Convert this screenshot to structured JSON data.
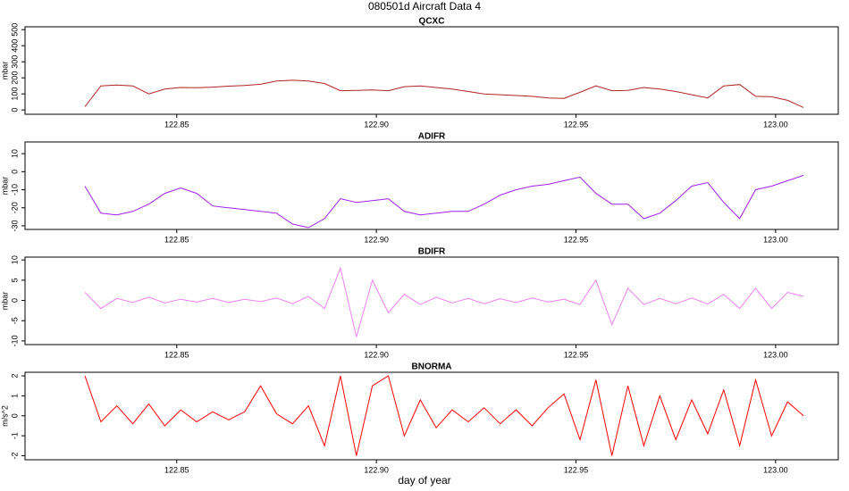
{
  "title": "080501d   Aircraft Data 4",
  "xlabel": "day of year",
  "chart_data": [
    {
      "type": "line",
      "title": "QCXC",
      "ylabel": "mbar",
      "color": "#b22222",
      "x": [
        122.827,
        122.831,
        122.835,
        122.839,
        122.843,
        122.847,
        122.851,
        122.855,
        122.859,
        122.863,
        122.867,
        122.871,
        122.875,
        122.879,
        122.883,
        122.887,
        122.891,
        122.895,
        122.899,
        122.903,
        122.907,
        122.911,
        122.915,
        122.919,
        122.923,
        122.927,
        122.931,
        122.935,
        122.939,
        122.943,
        122.947,
        122.951,
        122.955,
        122.959,
        122.963,
        122.967,
        122.971,
        122.975,
        122.979,
        122.983,
        122.987,
        122.991,
        122.995,
        122.999,
        123.003,
        123.007
      ],
      "values": [
        20,
        150,
        155,
        150,
        100,
        130,
        140,
        138,
        142,
        148,
        152,
        160,
        180,
        185,
        180,
        165,
        120,
        122,
        125,
        120,
        145,
        150,
        140,
        130,
        115,
        100,
        95,
        90,
        85,
        75,
        72,
        110,
        150,
        120,
        122,
        140,
        130,
        115,
        95,
        75,
        150,
        158,
        85,
        82,
        60,
        15
      ],
      "xlim": [
        122.812,
        123.0157
      ],
      "xticks": [
        122.85,
        {
          "value": 122.9,
          "label": "122.90"
        },
        122.95,
        {
          "value": 123,
          "label": "123.00"
        }
      ],
      "ylim": [
        -27,
        518
      ],
      "yticks": [
        0,
        100,
        200,
        300,
        400,
        500
      ]
    },
    {
      "type": "line",
      "title": "ADIFR",
      "ylabel": "mbar",
      "color": "#a020f0",
      "x": [
        122.827,
        122.831,
        122.835,
        122.839,
        122.843,
        122.847,
        122.851,
        122.855,
        122.859,
        122.863,
        122.867,
        122.871,
        122.875,
        122.879,
        122.883,
        122.887,
        122.891,
        122.895,
        122.899,
        122.903,
        122.907,
        122.911,
        122.915,
        122.919,
        122.923,
        122.927,
        122.931,
        122.935,
        122.939,
        122.943,
        122.947,
        122.951,
        122.955,
        122.959,
        122.963,
        122.967,
        122.971,
        122.975,
        122.979,
        122.983,
        122.987,
        122.991,
        122.995,
        122.999,
        123.003,
        123.007
      ],
      "values": [
        -8,
        -23,
        -24,
        -22,
        -18,
        -12,
        -9,
        -12,
        -19,
        -20,
        -21,
        -22,
        -23,
        -29,
        -31,
        -26,
        -15,
        -17,
        -16,
        -15,
        -22,
        -24,
        -23,
        -22,
        -22,
        -18,
        -13,
        -10,
        -8,
        -7,
        -5,
        -3,
        -12,
        -18,
        -18,
        -26,
        -23,
        -16,
        -8,
        -6,
        -17,
        -26,
        -10,
        -8,
        -5,
        -2
      ],
      "xlim": [
        122.812,
        123.0157
      ],
      "xticks": [
        122.85,
        {
          "value": 122.9,
          "label": "122.90"
        },
        122.95,
        {
          "value": 123,
          "label": "123.00"
        }
      ],
      "ylim": [
        -32,
        16.5
      ],
      "yticks": [
        -30,
        -20,
        -10,
        0,
        10
      ]
    },
    {
      "type": "line",
      "title": "BDIFR",
      "ylabel": "mbar",
      "color": "#ee82ee",
      "x": [
        122.827,
        122.831,
        122.835,
        122.839,
        122.843,
        122.847,
        122.851,
        122.855,
        122.859,
        122.863,
        122.867,
        122.871,
        122.875,
        122.879,
        122.883,
        122.887,
        122.891,
        122.895,
        122.899,
        122.903,
        122.907,
        122.911,
        122.915,
        122.919,
        122.923,
        122.927,
        122.931,
        122.935,
        122.939,
        122.943,
        122.947,
        122.951,
        122.955,
        122.959,
        122.963,
        122.967,
        122.971,
        122.975,
        122.979,
        122.983,
        122.987,
        122.991,
        122.995,
        122.999,
        123.003,
        123.007
      ],
      "values": [
        2,
        -2,
        0.5,
        -0.5,
        0.8,
        -0.6,
        0.3,
        -0.4,
        0.5,
        -0.5,
        0.3,
        -0.3,
        0.6,
        -0.8,
        1,
        -2,
        8,
        -9,
        5,
        -3,
        1.5,
        -1,
        0.8,
        -0.6,
        0.5,
        -0.8,
        0.4,
        -0.5,
        0.6,
        -0.4,
        0.3,
        -1,
        5,
        -6,
        3,
        -1,
        0.5,
        -0.8,
        0.6,
        -0.9,
        1.5,
        -2,
        3,
        -2,
        2,
        1
      ],
      "xlim": [
        122.812,
        123.0157
      ],
      "xticks": [
        122.85,
        {
          "value": 122.9,
          "label": "122.90"
        },
        122.95,
        {
          "value": 123,
          "label": "123.00"
        }
      ],
      "ylim": [
        -10.9,
        10.7
      ],
      "yticks": [
        -10,
        -5,
        0,
        5,
        10
      ]
    },
    {
      "type": "line",
      "title": "BNORMA",
      "ylabel": "m/s^2",
      "color": "#ff0000",
      "x": [
        122.827,
        122.831,
        122.835,
        122.839,
        122.843,
        122.847,
        122.851,
        122.855,
        122.859,
        122.863,
        122.867,
        122.871,
        122.875,
        122.879,
        122.883,
        122.887,
        122.891,
        122.895,
        122.899,
        122.903,
        122.907,
        122.911,
        122.915,
        122.919,
        122.923,
        122.927,
        122.931,
        122.935,
        122.939,
        122.943,
        122.947,
        122.951,
        122.955,
        122.959,
        122.963,
        122.967,
        122.971,
        122.975,
        122.979,
        122.983,
        122.987,
        122.991,
        122.995,
        122.999,
        123.003,
        123.007
      ],
      "values": [
        2,
        -0.3,
        0.5,
        -0.4,
        0.6,
        -0.5,
        0.3,
        -0.3,
        0.2,
        -0.2,
        0.2,
        1.5,
        0.1,
        -0.4,
        0.5,
        -1.5,
        2,
        -2,
        1.5,
        2,
        -1,
        0.8,
        -0.6,
        0.3,
        -0.3,
        0.4,
        -0.4,
        0.3,
        -0.5,
        0.4,
        1.1,
        -1.2,
        1.8,
        -2,
        1.5,
        -1.5,
        1,
        -1.2,
        0.8,
        -0.9,
        1.3,
        -1.5,
        1.8,
        -1,
        0.7,
        0
      ],
      "xlim": [
        122.812,
        123.0157
      ],
      "xticks": [
        122.85,
        {
          "value": 122.9,
          "label": "122.90"
        },
        122.95,
        {
          "value": 123,
          "label": "123.00"
        }
      ],
      "ylim": [
        -2.2,
        2.18
      ],
      "yticks": [
        -2,
        -1,
        0,
        1,
        2
      ]
    }
  ]
}
